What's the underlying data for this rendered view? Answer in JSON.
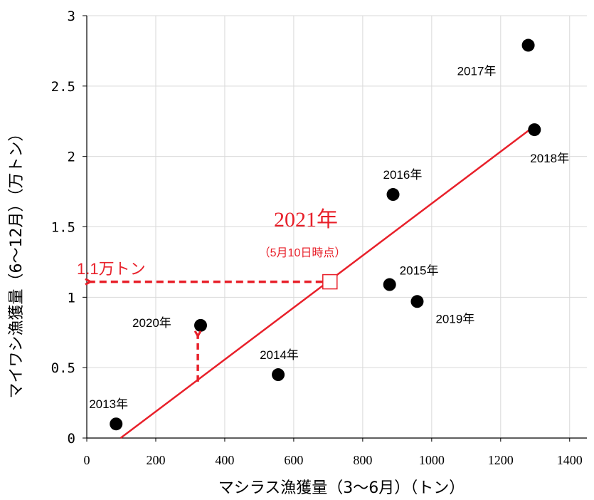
{
  "chart_data": {
    "type": "scatter",
    "xlabel": "マシラス漁獲量（3〜6月）（トン）",
    "ylabel": "マイワシ漁獲量（6〜12月）（万トン）",
    "xlim": [
      0,
      1450
    ],
    "ylim": [
      0,
      3
    ],
    "x_ticks": [
      "0",
      "200",
      "400",
      "600",
      "800",
      "1000",
      "1200",
      "1400"
    ],
    "y_ticks": [
      "0",
      "0.5",
      "1",
      "1.5",
      "2",
      "2.5",
      "3"
    ],
    "grid": true,
    "points": [
      {
        "label": "2013年",
        "x": 85,
        "y": 0.1
      },
      {
        "label": "2014年",
        "x": 555,
        "y": 0.45
      },
      {
        "label": "2015年",
        "x": 878,
        "y": 1.09
      },
      {
        "label": "2016年",
        "x": 888,
        "y": 1.73
      },
      {
        "label": "2017年",
        "x": 1280,
        "y": 2.79
      },
      {
        "label": "2018年",
        "x": 1298,
        "y": 2.19
      },
      {
        "label": "2019年",
        "x": 958,
        "y": 0.97
      },
      {
        "label": "2020年",
        "x": 330,
        "y": 0.8
      }
    ],
    "regression_line": {
      "x": [
        98,
        1295
      ],
      "y": [
        0,
        2.21
      ],
      "color": "#e8202a"
    },
    "highlight": {
      "year_label": "2021年",
      "note": "（5月10日時点）",
      "value_label": "1.1万トン",
      "x": 705,
      "y": 1.11,
      "color": "#e8202a"
    },
    "arrow_2020": {
      "x": 322,
      "y_from": 0.4,
      "y_to": 0.76,
      "color": "#e8202a"
    }
  }
}
